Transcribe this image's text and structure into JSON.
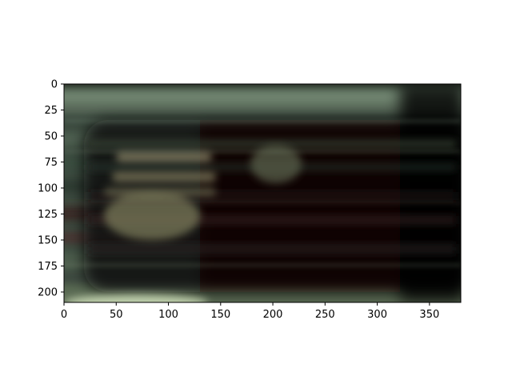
{
  "chart_data": {
    "type": "heatmap",
    "title": "",
    "xlabel": "",
    "ylabel": "",
    "xlim": [
      0,
      380
    ],
    "ylim": [
      210,
      0
    ],
    "x_ticks": [
      0,
      50,
      100,
      150,
      200,
      250,
      300,
      350
    ],
    "y_ticks": [
      0,
      25,
      50,
      75,
      100,
      125,
      150,
      175,
      200
    ],
    "y_axis_inverted": true,
    "grid": false,
    "legend": "none",
    "image_colors": {
      "gray_green": "#5b6f5e",
      "dark": "#0d0a08",
      "dark_red": "#2a0f0d",
      "pale_green": "#c8d8b4",
      "olive": "#6a6a48"
    }
  }
}
